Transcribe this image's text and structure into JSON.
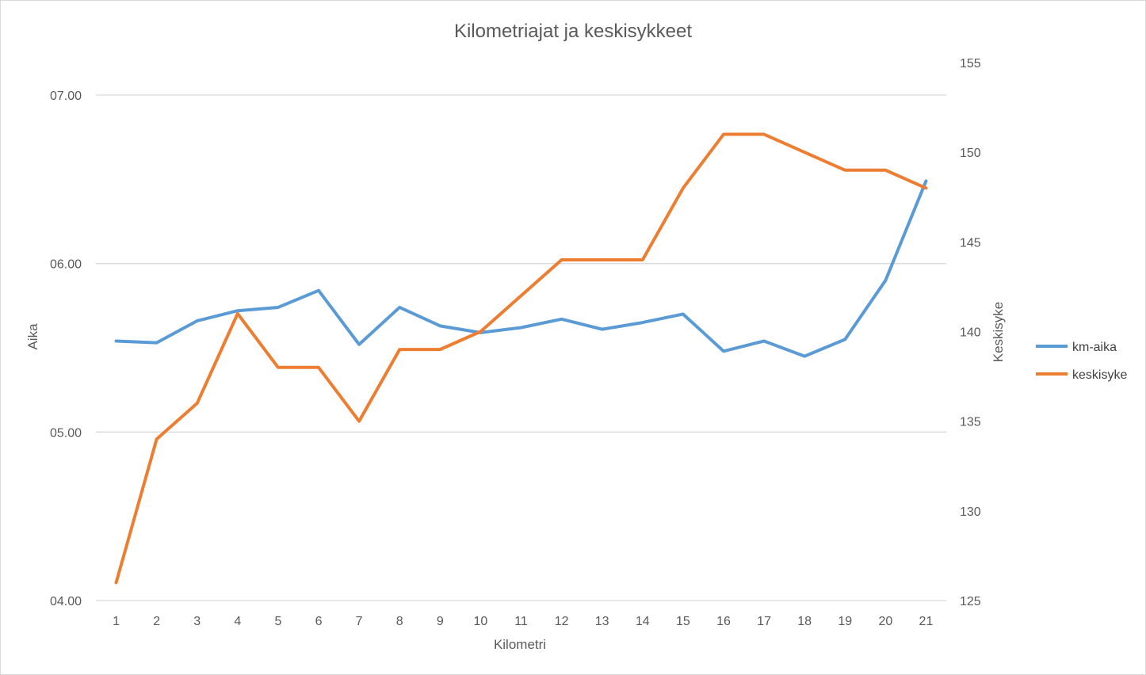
{
  "chart_data": {
    "type": "line",
    "title": "Kilometriajat ja keskisykkeet",
    "xlabel": "Kilometri",
    "ylabel": "Aika",
    "y2label": "Keskisyke",
    "categories": [
      "1",
      "2",
      "3",
      "4",
      "5",
      "6",
      "7",
      "8",
      "9",
      "10",
      "11",
      "12",
      "13",
      "14",
      "15",
      "16",
      "17",
      "18",
      "19",
      "20",
      "21"
    ],
    "y_ticks": [
      "04.00",
      "05.00",
      "06.00",
      "07.00"
    ],
    "ylim": [
      4.0,
      7.0
    ],
    "y2_ticks": [
      "125",
      "130",
      "135",
      "140",
      "145",
      "150",
      "155"
    ],
    "y2lim": [
      125,
      155
    ],
    "grid": true,
    "legend_position": "right",
    "series": [
      {
        "name": "km-aika",
        "axis": "left",
        "color": "#5b9bd5",
        "values": [
          5.54,
          5.53,
          5.66,
          5.72,
          5.74,
          5.84,
          5.52,
          5.74,
          5.63,
          5.59,
          5.62,
          5.67,
          5.61,
          5.65,
          5.7,
          5.48,
          5.54,
          5.45,
          5.55,
          5.9,
          6.49
        ]
      },
      {
        "name": "keskisyke",
        "axis": "right",
        "color": "#ed7d31",
        "values": [
          126,
          134,
          136,
          141,
          138,
          138,
          135,
          139,
          139,
          140,
          142,
          144,
          144,
          144,
          148,
          151,
          151,
          150,
          149,
          149,
          148
        ]
      }
    ]
  }
}
